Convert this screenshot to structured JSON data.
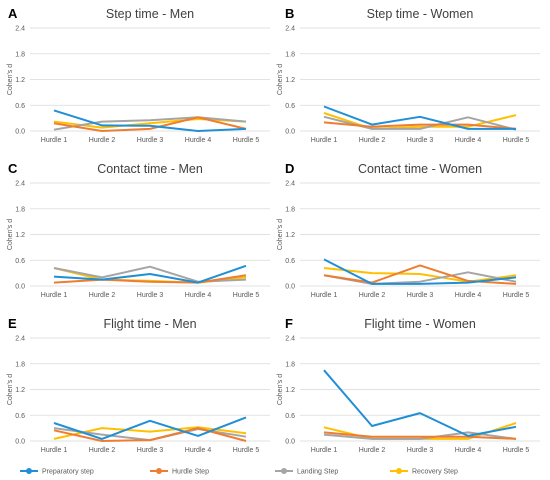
{
  "colors": {
    "Preparatory step": "#1f8fd6",
    "Hurdle Step": "#ed7d31",
    "Landing Step": "#a5a5a5",
    "Recovery Step": "#ffc000"
  },
  "chart_data": [
    {
      "type": "line",
      "letter": "A",
      "title": "Step time - Men",
      "ylabel": "Cohen's d",
      "categories": [
        "Hurdle 1",
        "Hurdle 2",
        "Hurdle 3",
        "Hurdle 4",
        "Hurdle 5"
      ],
      "ylim": [
        0,
        2.4
      ],
      "yticks": [
        "0.0",
        "0.6",
        "1.2",
        "1.8",
        "2.4"
      ],
      "series": [
        {
          "name": "Preparatory step",
          "values": [
            0.48,
            0.13,
            0.12,
            0.0,
            0.05
          ]
        },
        {
          "name": "Hurdle Step",
          "values": [
            0.18,
            0.0,
            0.05,
            0.32,
            0.05
          ]
        },
        {
          "name": "Landing Step",
          "values": [
            0.03,
            0.22,
            0.25,
            0.32,
            0.22
          ]
        },
        {
          "name": "Recovery Step",
          "values": [
            0.22,
            0.08,
            0.18,
            0.28,
            0.22
          ]
        }
      ]
    },
    {
      "type": "line",
      "letter": "B",
      "title": "Step time - Women",
      "ylabel": "Cohen's d",
      "categories": [
        "Hurdle 1",
        "Hurdle 2",
        "Hurdle 3",
        "Hurdle 4",
        "Hurdle 5"
      ],
      "ylim": [
        0,
        2.4
      ],
      "yticks": [
        "0.0",
        "0.6",
        "1.2",
        "1.8",
        "2.4"
      ],
      "series": [
        {
          "name": "Preparatory step",
          "values": [
            0.57,
            0.15,
            0.33,
            0.05,
            0.05
          ]
        },
        {
          "name": "Hurdle Step",
          "values": [
            0.2,
            0.1,
            0.15,
            0.15,
            0.05
          ]
        },
        {
          "name": "Landing Step",
          "values": [
            0.33,
            0.05,
            0.05,
            0.32,
            0.03
          ]
        },
        {
          "name": "Recovery Step",
          "values": [
            0.42,
            0.05,
            0.1,
            0.1,
            0.37
          ]
        }
      ]
    },
    {
      "type": "line",
      "letter": "C",
      "title": "Contact time - Men",
      "ylabel": "Cohen's d",
      "categories": [
        "Hurdle 1",
        "Hurdle 2",
        "Hurdle 3",
        "Hurdle 4",
        "Hurdle 5"
      ],
      "ylim": [
        0,
        2.4
      ],
      "yticks": [
        "0.0",
        "0.6",
        "1.2",
        "1.8",
        "2.4"
      ],
      "series": [
        {
          "name": "Preparatory step",
          "values": [
            0.22,
            0.15,
            0.28,
            0.08,
            0.47
          ]
        },
        {
          "name": "Hurdle Step",
          "values": [
            0.08,
            0.15,
            0.1,
            0.08,
            0.25
          ]
        },
        {
          "name": "Landing Step",
          "values": [
            0.42,
            0.2,
            0.45,
            0.1,
            0.15
          ]
        },
        {
          "name": "Recovery Step",
          "values": [
            0.42,
            0.15,
            0.12,
            0.08,
            0.2
          ]
        }
      ]
    },
    {
      "type": "line",
      "letter": "D",
      "title": "Contact time - Women",
      "ylabel": "Cohen's d",
      "categories": [
        "Hurdle 1",
        "Hurdle 2",
        "Hurdle 3",
        "Hurdle 4",
        "Hurdle 5"
      ],
      "ylim": [
        0,
        2.4
      ],
      "yticks": [
        "0.0",
        "0.6",
        "1.2",
        "1.8",
        "2.4"
      ],
      "series": [
        {
          "name": "Preparatory step",
          "values": [
            0.62,
            0.05,
            0.05,
            0.08,
            0.2
          ]
        },
        {
          "name": "Hurdle Step",
          "values": [
            0.25,
            0.08,
            0.48,
            0.12,
            0.05
          ]
        },
        {
          "name": "Landing Step",
          "values": [
            0.25,
            0.05,
            0.1,
            0.32,
            0.1
          ]
        },
        {
          "name": "Recovery Step",
          "values": [
            0.42,
            0.3,
            0.28,
            0.1,
            0.25
          ]
        }
      ]
    },
    {
      "type": "line",
      "letter": "E",
      "title": "Flight time - Men",
      "ylabel": "Cohen's d",
      "categories": [
        "Hurdle 1",
        "Hurdle 2",
        "Hurdle 3",
        "Hurdle 4",
        "Hurdle 5"
      ],
      "ylim": [
        0,
        2.4
      ],
      "yticks": [
        "0.0",
        "0.6",
        "1.2",
        "1.8",
        "2.4"
      ],
      "series": [
        {
          "name": "Preparatory step",
          "values": [
            0.42,
            0.05,
            0.47,
            0.12,
            0.55
          ]
        },
        {
          "name": "Hurdle Step",
          "values": [
            0.25,
            0.0,
            0.02,
            0.3,
            0.0
          ]
        },
        {
          "name": "Landing Step",
          "values": [
            0.3,
            0.15,
            0.02,
            0.28,
            0.1
          ]
        },
        {
          "name": "Recovery Step",
          "values": [
            0.05,
            0.3,
            0.22,
            0.32,
            0.18
          ]
        }
      ]
    },
    {
      "type": "line",
      "letter": "F",
      "title": "Flight time - Women",
      "ylabel": "Cohen's d",
      "categories": [
        "Hurdle 1",
        "Hurdle 2",
        "Hurdle 3",
        "Hurdle 4",
        "Hurdle 5"
      ],
      "ylim": [
        0,
        2.4
      ],
      "yticks": [
        "0.0",
        "0.6",
        "1.2",
        "1.8",
        "2.4"
      ],
      "series": [
        {
          "name": "Preparatory step",
          "values": [
            1.65,
            0.35,
            0.65,
            0.12,
            0.33
          ]
        },
        {
          "name": "Hurdle Step",
          "values": [
            0.2,
            0.1,
            0.1,
            0.1,
            0.05
          ]
        },
        {
          "name": "Landing Step",
          "values": [
            0.15,
            0.05,
            0.05,
            0.2,
            0.05
          ]
        },
        {
          "name": "Recovery Step",
          "values": [
            0.32,
            0.05,
            0.05,
            0.05,
            0.42
          ]
        }
      ]
    }
  ],
  "legend": [
    "Preparatory step",
    "Hurdle Step",
    "Landing Step",
    "Recovery Step"
  ]
}
